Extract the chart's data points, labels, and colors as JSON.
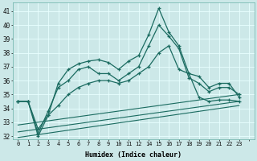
{
  "xlabel": "Humidex (Indice chaleur)",
  "bg_color": "#cce8e8",
  "grid_color": "#f0ffff",
  "line_color": "#1a6b60",
  "xlim": [
    -0.5,
    23.5
  ],
  "ylim": [
    31.8,
    41.6
  ],
  "yticks": [
    32,
    33,
    34,
    35,
    36,
    37,
    38,
    39,
    40,
    41
  ],
  "xtick_positions": [
    0,
    1,
    2,
    3,
    4,
    5,
    6,
    7,
    8,
    9,
    10,
    11,
    12,
    13,
    14,
    15,
    16,
    17,
    18,
    19,
    20,
    21,
    22,
    23
  ],
  "xtick_labels": [
    "0",
    "1",
    "2",
    "3",
    "4",
    "5",
    "6",
    "7",
    "8",
    "9",
    "10",
    "11",
    "12",
    "14",
    "15",
    "16",
    "17",
    "18",
    "19",
    "20",
    "21",
    "22",
    "23",
    ""
  ],
  "series": [
    {
      "x": [
        0,
        1,
        2,
        3,
        4,
        5,
        6,
        7,
        8,
        9,
        10,
        11,
        12,
        13,
        14,
        15,
        16,
        17,
        18,
        19,
        20,
        21,
        22
      ],
      "y": [
        34.5,
        34.5,
        32.5,
        33.5,
        35.8,
        36.8,
        37.2,
        37.4,
        37.5,
        37.3,
        36.8,
        37.4,
        37.8,
        39.3,
        41.2,
        39.5,
        38.5,
        36.5,
        36.3,
        35.5,
        35.8,
        35.8,
        34.8
      ],
      "marker": "+"
    },
    {
      "x": [
        0,
        1,
        2,
        3,
        4,
        5,
        6,
        7,
        8,
        9,
        10,
        11,
        12,
        13,
        14,
        15,
        16,
        17,
        18,
        19,
        20,
        21,
        22
      ],
      "y": [
        34.5,
        34.5,
        32.2,
        33.8,
        35.5,
        36.0,
        36.8,
        37.0,
        36.5,
        36.5,
        36.0,
        36.5,
        37.0,
        38.5,
        40.0,
        39.2,
        38.3,
        36.2,
        35.8,
        35.2,
        35.5,
        35.5,
        35.0
      ],
      "marker": "+"
    },
    {
      "x": [
        0,
        1,
        2,
        3,
        4,
        5,
        6,
        7,
        8,
        9,
        10,
        11,
        12,
        13,
        14,
        15,
        16,
        17,
        18,
        19,
        20,
        21,
        22
      ],
      "y": [
        34.5,
        34.5,
        32.0,
        33.5,
        34.2,
        35.0,
        35.5,
        35.8,
        36.0,
        36.0,
        35.8,
        36.0,
        36.5,
        37.0,
        38.0,
        38.5,
        36.8,
        36.5,
        34.8,
        34.5,
        34.6,
        34.6,
        34.5
      ],
      "marker": "+"
    },
    {
      "x": [
        0,
        22
      ],
      "y": [
        32.8,
        35.0
      ],
      "marker": null
    },
    {
      "x": [
        0,
        22
      ],
      "y": [
        32.3,
        34.5
      ],
      "marker": null
    },
    {
      "x": [
        0,
        22
      ],
      "y": [
        31.9,
        34.2
      ],
      "marker": null
    }
  ]
}
